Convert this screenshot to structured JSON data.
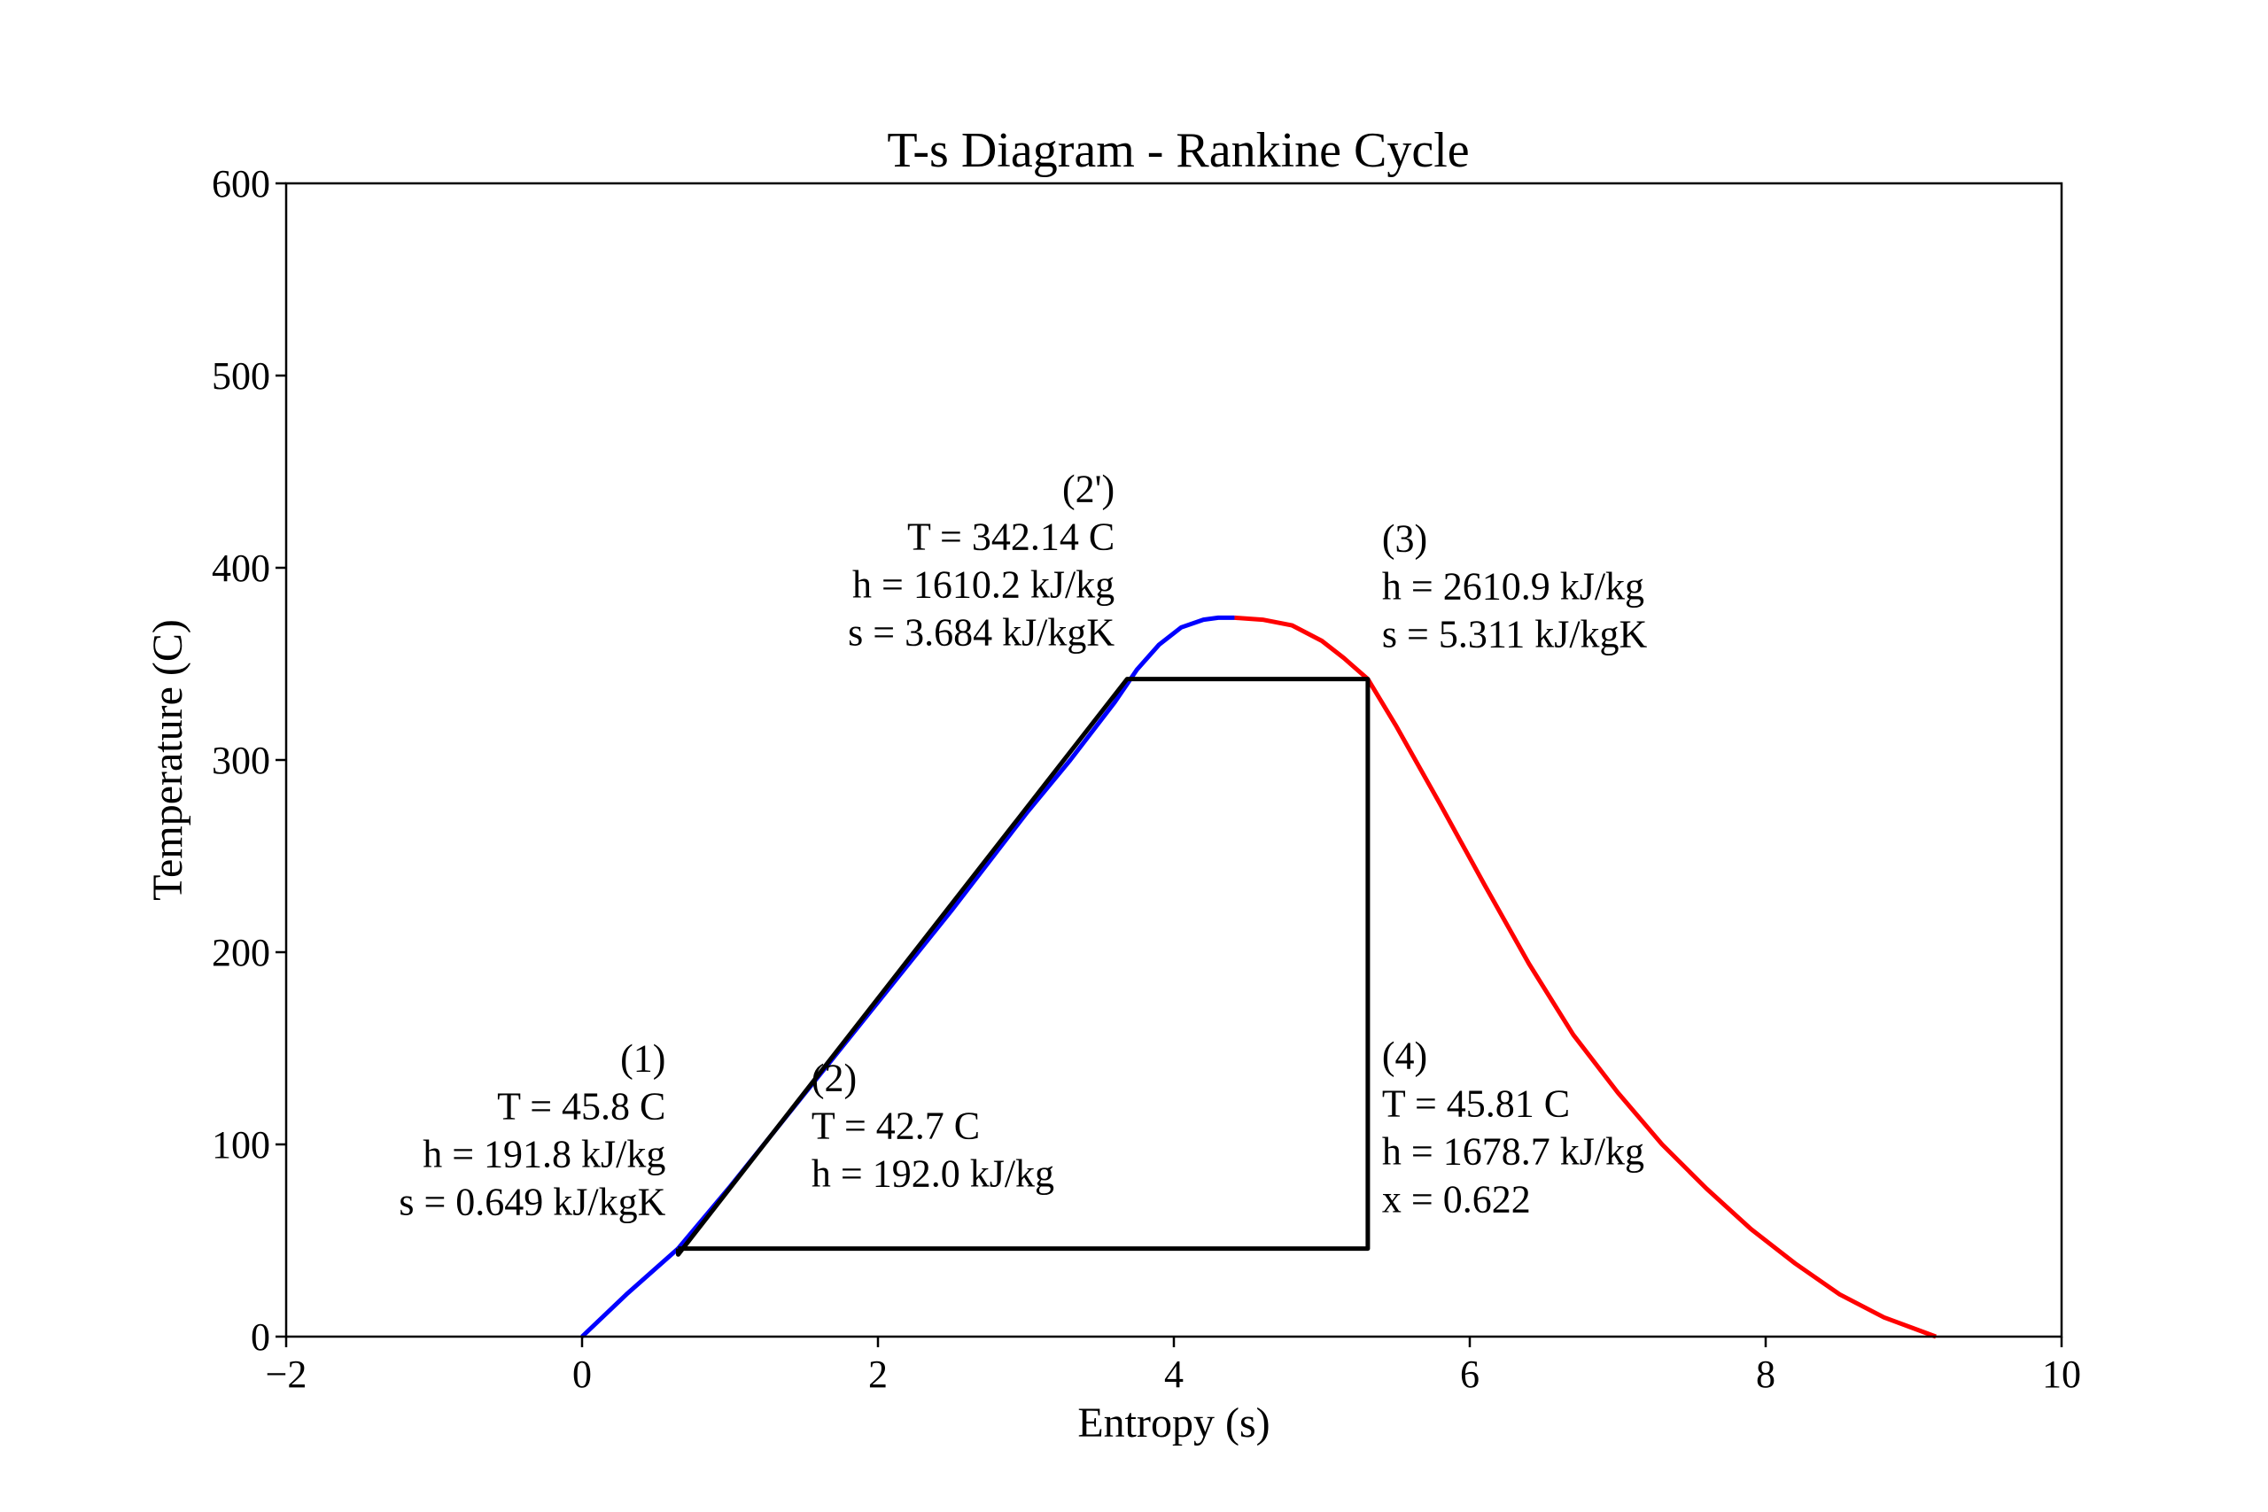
{
  "chart_data": {
    "type": "line",
    "title": "T-s Diagram - Rankine Cycle",
    "xlabel": "Entropy (s)",
    "ylabel": "Temperature (C)",
    "xlim": [
      -2,
      10
    ],
    "ylim": [
      0,
      600
    ],
    "xticks": [
      -2,
      0,
      2,
      4,
      6,
      8,
      10
    ],
    "yticks": [
      0,
      100,
      200,
      300,
      400,
      500,
      600
    ],
    "xtick_labels": [
      "−2",
      "0",
      "2",
      "4",
      "6",
      "8",
      "10"
    ],
    "ytick_labels": [
      "0",
      "100",
      "200",
      "300",
      "400",
      "500",
      "600"
    ],
    "grid": false,
    "legend": "none",
    "series": [
      {
        "role": "saturated liquid line",
        "color": "#0000ff",
        "x": [
          0.0,
          0.3,
          0.649,
          1.0,
          1.5,
          2.0,
          2.5,
          3.0,
          3.3,
          3.6,
          3.75,
          3.9,
          4.05,
          4.2,
          4.3,
          4.41
        ],
        "y": [
          0,
          22,
          45.8,
          78,
          126,
          174,
          222,
          272,
          300,
          330,
          347,
          360,
          369,
          373,
          374,
          374
        ]
      },
      {
        "role": "saturated vapor line",
        "color": "#ff0000",
        "x": [
          4.41,
          4.6,
          4.8,
          5.0,
          5.15,
          5.311,
          5.5,
          5.8,
          6.1,
          6.4,
          6.7,
          7.0,
          7.3,
          7.6,
          7.9,
          8.2,
          8.5,
          8.8,
          9.15
        ],
        "y": [
          374,
          373,
          370,
          362,
          353,
          342.14,
          318,
          277,
          235,
          194,
          157,
          127,
          100,
          77,
          56,
          38,
          22,
          10,
          0
        ]
      },
      {
        "role": "cycle",
        "color": "#000000",
        "x": [
          0.649,
          0.65,
          3.684,
          5.311,
          5.311,
          0.649
        ],
        "y": [
          45.8,
          42.7,
          342.14,
          342.14,
          45.81,
          45.8
        ]
      }
    ],
    "annotations": [
      {
        "id": "p1",
        "x": 0.649,
        "y": 45.8,
        "lines": [
          "(1)",
          "T = 45.8 C",
          "h = 191.8 kJ/kg",
          "s = 0.649 kJ/kgK"
        ]
      },
      {
        "id": "p2",
        "x": 1.55,
        "y": 42.7,
        "lines": [
          "(2)",
          "T = 42.7 C",
          "h = 192.0 kJ/kg"
        ]
      },
      {
        "id": "p2prime",
        "x": 3.684,
        "y": 342.14,
        "lines": [
          "(2')",
          "T = 342.14 C",
          "h = 1610.2 kJ/kg",
          "s = 3.684 kJ/kgK"
        ]
      },
      {
        "id": "p3",
        "x": 5.311,
        "y": 342.14,
        "lines": [
          "(3)",
          "h = 2610.9 kJ/kg",
          "s = 5.311 kJ/kgK"
        ]
      },
      {
        "id": "p4",
        "x": 5.311,
        "y": 45.81,
        "lines": [
          "(4)",
          "T = 45.81 C",
          "h = 1678.7 kJ/kg",
          "x = 0.622"
        ]
      }
    ]
  }
}
